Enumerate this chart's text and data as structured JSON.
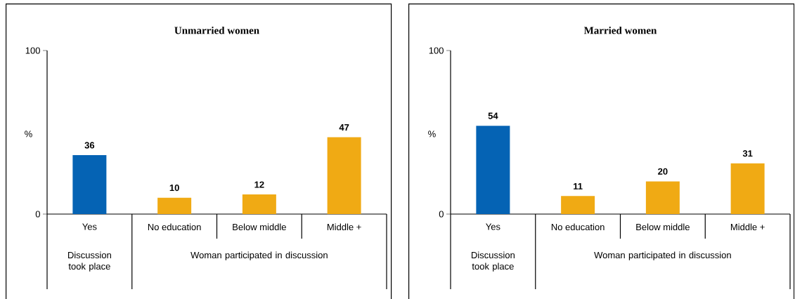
{
  "chart_data": [
    {
      "type": "bar",
      "title": "Unmarried women",
      "ylabel": "%",
      "categories": [
        "Yes",
        "No education",
        "Below middle",
        "Middle +"
      ],
      "values": [
        36,
        10,
        12,
        47
      ],
      "colors": [
        "#0563b4",
        "#f0aa14",
        "#f0aa14",
        "#f0aa14"
      ],
      "ylim": [
        0,
        100
      ],
      "yticks": [
        0,
        100
      ],
      "data_labels": true,
      "grid": false,
      "annotations": [
        "Discussion took place",
        "Woman participated in discussion"
      ]
    },
    {
      "type": "bar",
      "title": "Married women",
      "ylabel": "%",
      "categories": [
        "Yes",
        "No education",
        "Below middle",
        "Middle +"
      ],
      "values": [
        54,
        11,
        20,
        31
      ],
      "colors": [
        "#0563b4",
        "#f0aa14",
        "#f0aa14",
        "#f0aa14"
      ],
      "ylim": [
        0,
        100
      ],
      "yticks": [
        0,
        100
      ],
      "data_labels": true,
      "grid": false,
      "annotations": [
        "Discussion took place",
        "Woman participated in discussion"
      ]
    }
  ]
}
